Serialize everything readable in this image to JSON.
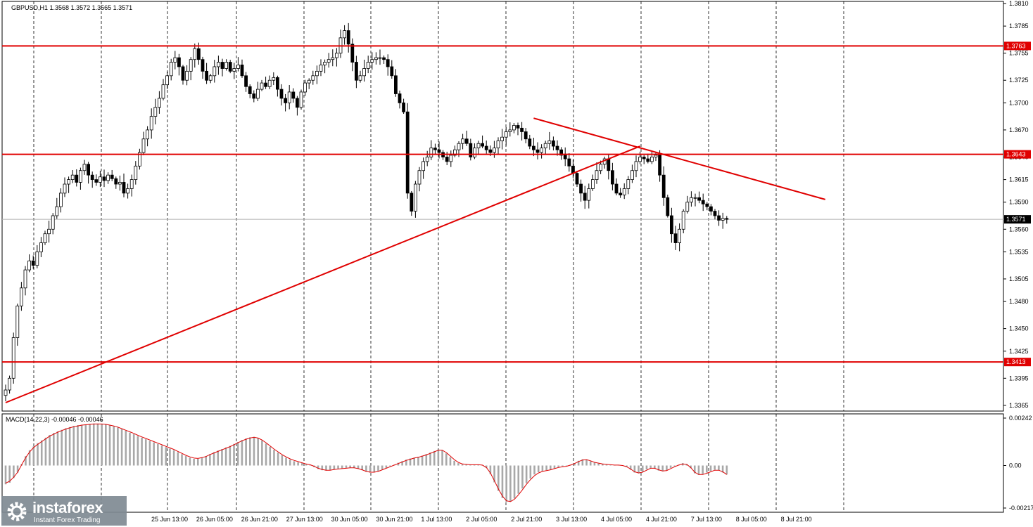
{
  "header": {
    "symbol": "GBPUSD,H1",
    "ohlc": "1.3568 1.3572 1.3565 1.3571"
  },
  "macd": {
    "label": "MACD(14,22,3) -0.00046 -0.00046",
    "scale": [
      "0.00242",
      "0.00",
      "-0.00217"
    ],
    "hist": [
      -0.00096,
      -0.00088,
      -0.00064,
      -0.00036,
      8e-05,
      0.00048,
      0.00078,
      0.00098,
      0.00114,
      0.00128,
      0.00142,
      0.00156,
      0.00166,
      0.00174,
      0.00182,
      0.0019,
      0.00196,
      0.00202,
      0.00206,
      0.00208,
      0.0021,
      0.00212,
      0.00214,
      0.00214,
      0.00212,
      0.0021,
      0.00206,
      0.002,
      0.00194,
      0.00186,
      0.00178,
      0.00168,
      0.0016,
      0.0015,
      0.00142,
      0.00134,
      0.00126,
      0.00118,
      0.0011,
      0.00102,
      0.00094,
      0.00086,
      0.00078,
      0.00068,
      0.00058,
      0.00048,
      0.0004,
      0.00034,
      0.00034,
      0.0004,
      0.00048,
      0.00058,
      0.00068,
      0.00076,
      0.00084,
      0.00092,
      0.001,
      0.0011,
      0.0012,
      0.0013,
      0.00138,
      0.00144,
      0.00146,
      0.0014,
      0.00128,
      0.00112,
      0.00096,
      0.0008,
      0.00066,
      0.00052,
      0.0004,
      0.0003,
      0.00022,
      0.00016,
      0.00012,
      6e-05,
      2e-05,
      -8e-05,
      -0.00018,
      -0.00024,
      -0.00026,
      -0.00024,
      -0.0002,
      -0.00016,
      -0.00014,
      -0.00012,
      -0.0001,
      -0.00012,
      -0.00016,
      -0.00024,
      -0.00032,
      -0.00036,
      -0.00034,
      -0.00028,
      -0.0002,
      -0.00012,
      -4e-05,
      4e-05,
      0.00014,
      0.00022,
      0.0003,
      0.00036,
      0.0004,
      0.00044,
      0.0005,
      0.00058,
      0.00066,
      0.00074,
      0.00082,
      0.00078,
      0.00062,
      0.00042,
      0.00024,
      0.00012,
      6e-05,
      4e-05,
      4e-05,
      4e-05,
      4e-05,
      2e-05,
      -0.00012,
      -0.00044,
      -0.00086,
      -0.0013,
      -0.00166,
      -0.00186,
      -0.00184,
      -0.00168,
      -0.00144,
      -0.00118,
      -0.0009,
      -0.00066,
      -0.00046,
      -0.00034,
      -0.00028,
      -0.00024,
      -0.0002,
      -0.00014,
      -8e-05,
      -4e-05,
      -2e-05,
      4e-05,
      0.00012,
      0.00024,
      0.00032,
      0.0003,
      0.00022,
      0.00014,
      0.0001,
      8e-05,
      4e-05,
      2e-05,
      2e-05,
      2e-05,
      0.0,
      -8e-05,
      -0.00022,
      -0.00036,
      -0.0004,
      -0.00032,
      -0.0002,
      -0.00012,
      -0.00016,
      -0.00026,
      -0.0003,
      -0.00024,
      -0.00012,
      -4e-05,
      4e-05,
      0.00012,
      8e-05,
      -0.00014,
      -0.0004,
      -0.00048,
      -0.00044,
      -0.00036,
      -0.00028,
      -0.00022,
      -0.00024,
      -0.00036,
      -0.00046
    ],
    "signal": [
      -0.0009,
      -0.0008,
      -0.0006,
      -0.00034,
      4e-05,
      0.0004,
      0.0007,
      0.00092,
      0.00108,
      0.00122,
      0.00136,
      0.0015,
      0.0016,
      0.0017,
      0.00178,
      0.00186,
      0.00192,
      0.00198,
      0.00202,
      0.00206,
      0.00208,
      0.0021,
      0.00212,
      0.00212,
      0.00212,
      0.0021,
      0.00206,
      0.00202,
      0.00196,
      0.00188,
      0.0018,
      0.00172,
      0.00164,
      0.00154,
      0.00146,
      0.00138,
      0.0013,
      0.00122,
      0.00114,
      0.00106,
      0.00098,
      0.0009,
      0.00082,
      0.00072,
      0.00062,
      0.00052,
      0.00044,
      0.00038,
      0.00036,
      0.0004,
      0.00046,
      0.00056,
      0.00064,
      0.00072,
      0.0008,
      0.00088,
      0.00096,
      0.00106,
      0.00116,
      0.00126,
      0.00134,
      0.0014,
      0.00144,
      0.0014,
      0.0013,
      0.00116,
      0.001,
      0.00084,
      0.0007,
      0.00056,
      0.00044,
      0.00034,
      0.00026,
      0.0002,
      0.00014,
      8e-05,
      4e-05,
      -4e-05,
      -0.00014,
      -0.0002,
      -0.00024,
      -0.00024,
      -0.0002,
      -0.00018,
      -0.00016,
      -0.00014,
      -0.00012,
      -0.00012,
      -0.00016,
      -0.00022,
      -0.0003,
      -0.00034,
      -0.00034,
      -0.0003,
      -0.00022,
      -0.00014,
      -6e-05,
      2e-05,
      0.0001,
      0.00018,
      0.00026,
      0.00032,
      0.00038,
      0.00042,
      0.00048,
      0.00054,
      0.00062,
      0.0007,
      0.00078,
      0.00078,
      0.00066,
      0.00048,
      0.0003,
      0.00016,
      8e-05,
      6e-05,
      4e-05,
      4e-05,
      4e-05,
      2e-05,
      -0.0001,
      -0.00038,
      -0.00078,
      -0.0012,
      -0.00156,
      -0.0018,
      -0.00184,
      -0.00172,
      -0.0015,
      -0.00124,
      -0.00096,
      -0.00072,
      -0.00052,
      -0.00038,
      -0.0003,
      -0.00026,
      -0.00022,
      -0.00016,
      -0.0001,
      -6e-05,
      -4e-05,
      2e-05,
      0.0001,
      0.0002,
      0.00028,
      0.0003,
      0.00024,
      0.00016,
      0.00012,
      8e-05,
      6e-05,
      4e-05,
      2e-05,
      2e-05,
      0.0,
      -6e-05,
      -0.00018,
      -0.00032,
      -0.00038,
      -0.00034,
      -0.00024,
      -0.00014,
      -0.00014,
      -0.00022,
      -0.00028,
      -0.00026,
      -0.00016,
      -6e-05,
      2e-05,
      8e-05,
      6e-05,
      -0.0001,
      -0.00034,
      -0.00046,
      -0.00046,
      -0.0004,
      -0.00032,
      -0.00024,
      -0.00024,
      -0.00032,
      -0.00046
    ]
  },
  "chart_data": {
    "type": "candlestick",
    "symbol": "GBPUSD",
    "timeframe": "H1",
    "y_ticks": [
      "1.3810",
      "1.3785",
      "1.3755",
      "1.3725",
      "1.3700",
      "1.3670",
      "1.3640",
      "1.3615",
      "1.3590",
      "1.3560",
      "1.3535",
      "1.3505",
      "1.3480",
      "1.3450",
      "1.3425",
      "1.3395",
      "1.3365"
    ],
    "ylim": [
      1.3361,
      1.381
    ],
    "x_ticks": [
      "25 Jun 13:00",
      "26 Jun 05:00",
      "26 Jun 21:00",
      "27 Jun 13:00",
      "30 Jun 05:00",
      "30 Jun 21:00",
      "1 Jul 13:00",
      "2 Jul 05:00",
      "2 Jul 21:00",
      "3 Jul 13:00",
      "4 Jul 05:00",
      "4 Jul 21:00",
      "7 Jul 13:00",
      "8 Jul 05:00",
      "8 Jul 21:00"
    ],
    "grid": "vertical dashed",
    "levels": [
      {
        "label": "1.3763",
        "price": 1.3763
      },
      {
        "label": "1.3643",
        "price": 1.3643
      },
      {
        "label": "1.3413",
        "price": 1.3413
      }
    ],
    "current_price": {
      "label": "1.3571",
      "price": 1.3571
    },
    "trendlines": [
      {
        "name": "ascending",
        "from": [
          0,
          1.3368
        ],
        "to": [
          161,
          1.3652
        ]
      },
      {
        "name": "descending",
        "from": [
          134,
          1.3683
        ],
        "to": [
          208,
          1.3593
        ]
      }
    ],
    "closes": [
      1.3382,
      1.3395,
      1.344,
      1.3475,
      1.3495,
      1.3515,
      1.3525,
      1.352,
      1.3535,
      1.3545,
      1.3555,
      1.356,
      1.3575,
      1.3585,
      1.36,
      1.361,
      1.3615,
      1.362,
      1.3612,
      1.3625,
      1.3632,
      1.362,
      1.3615,
      1.3612,
      1.3618,
      1.3614,
      1.362,
      1.3616,
      1.361,
      1.3612,
      1.36,
      1.3605,
      1.3615,
      1.363,
      1.3645,
      1.366,
      1.367,
      1.3685,
      1.3695,
      1.3705,
      1.372,
      1.373,
      1.3745,
      1.375,
      1.374,
      1.3725,
      1.3735,
      1.3748,
      1.376,
      1.3748,
      1.3735,
      1.3725,
      1.373,
      1.374,
      1.3745,
      1.3738,
      1.3745,
      1.3735,
      1.3738,
      1.3742,
      1.373,
      1.3718,
      1.371,
      1.3705,
      1.3715,
      1.3722,
      1.3718,
      1.3725,
      1.3728,
      1.3715,
      1.3705,
      1.37,
      1.3712,
      1.3705,
      1.3695,
      1.3712,
      1.3722,
      1.3725,
      1.373,
      1.3735,
      1.3742,
      1.3745,
      1.3748,
      1.375,
      1.3755,
      1.3772,
      1.378,
      1.3765,
      1.3745,
      1.3725,
      1.373,
      1.3738,
      1.3745,
      1.3748,
      1.375,
      1.375,
      1.3748,
      1.374,
      1.373,
      1.371,
      1.37,
      1.369,
      1.36,
      1.358,
      1.361,
      1.3625,
      1.3635,
      1.364,
      1.365,
      1.3648,
      1.3645,
      1.364,
      1.3635,
      1.3642,
      1.3648,
      1.3655,
      1.366,
      1.3655,
      1.364,
      1.365,
      1.3655,
      1.3652,
      1.3648,
      1.3645,
      1.365,
      1.3658,
      1.3662,
      1.3668,
      1.367,
      1.3675,
      1.3672,
      1.3668,
      1.366,
      1.3652,
      1.3648,
      1.3645,
      1.365,
      1.3655,
      1.3658,
      1.3652,
      1.3648,
      1.3642,
      1.3638,
      1.363,
      1.3622,
      1.361,
      1.36,
      1.3592,
      1.3605,
      1.3615,
      1.3625,
      1.3632,
      1.3638,
      1.3625,
      1.361,
      1.36,
      1.3598,
      1.3605,
      1.3615,
      1.3625,
      1.3635,
      1.364,
      1.3638,
      1.3635,
      1.364,
      1.3642,
      1.362,
      1.3595,
      1.3575,
      1.3555,
      1.3545,
      1.356,
      1.358,
      1.359,
      1.3595,
      1.3595,
      1.3592,
      1.3588,
      1.3585,
      1.358,
      1.3575,
      1.357,
      1.3572,
      1.3571
    ]
  },
  "branding": {
    "logo_text": "instaforex",
    "tagline": "Instant Forex Trading"
  }
}
